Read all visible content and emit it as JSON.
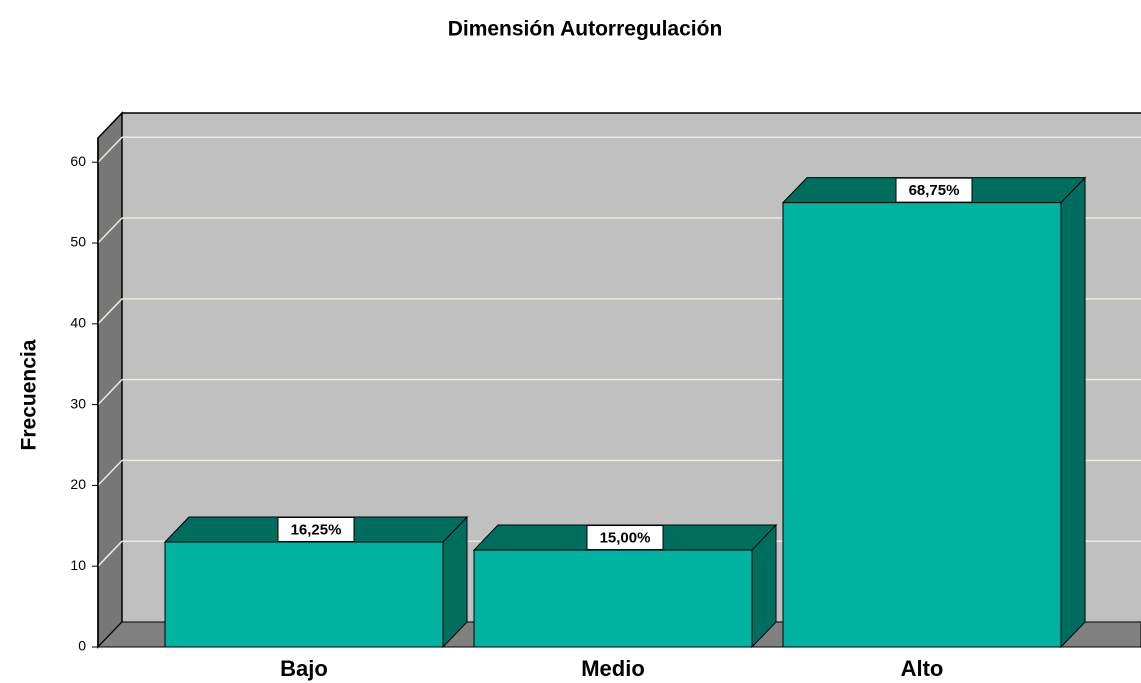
{
  "chart_data": {
    "type": "bar3d",
    "title": "Dimensión Autorregulación",
    "y_label": "Frecuencia",
    "categories": [
      "Bajo",
      "Medio",
      "Alto"
    ],
    "values": [
      13,
      12,
      55
    ],
    "percentages": [
      16.25,
      15.0,
      68.75
    ],
    "percentage_labels": [
      "16,25%",
      "15,00%",
      "68,75%"
    ],
    "color": "#00b2a0",
    "ylim": [
      0,
      63
    ],
    "yticks": [
      0,
      10,
      20,
      30,
      40,
      50,
      60
    ],
    "grid": true
  }
}
